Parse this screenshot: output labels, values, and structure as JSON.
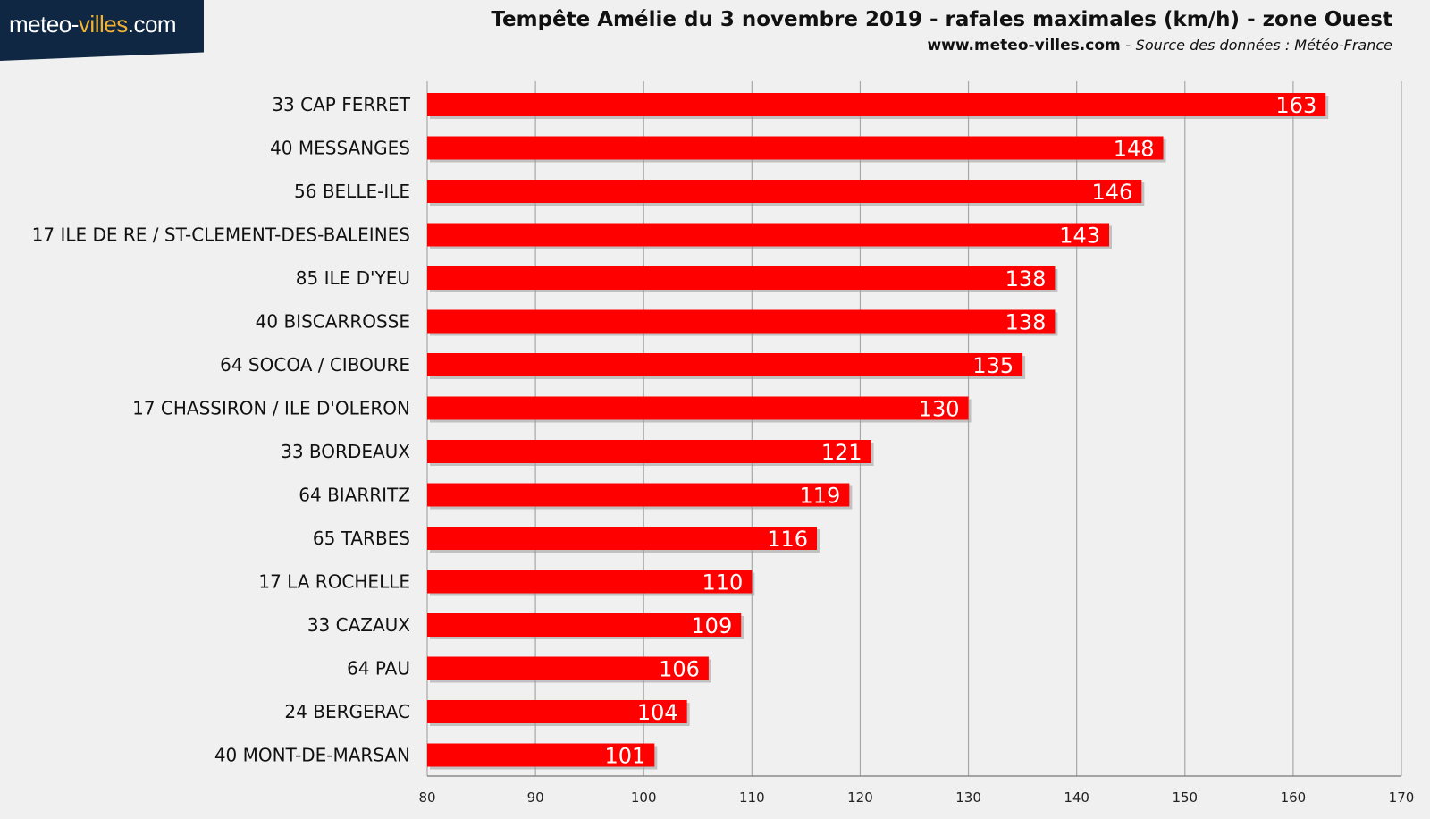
{
  "header": {
    "logo_part1": "meteo-",
    "logo_part2": "villes",
    "logo_part3": ".com",
    "title": "Tempête Amélie du 3 novembre 2019 - rafales maximales (km/h) - zone Ouest",
    "site": "www.meteo-villes.com",
    "separator": " - ",
    "source": "Source des données : Météo-France"
  },
  "colors": {
    "bar": "#ff0000",
    "bar_shadow": "#9a9a9a",
    "grid": "#a8a8a8",
    "background": "#f0f0f0",
    "logo_bg": "#0f2742",
    "logo_accent": "#f2b233"
  },
  "chart_data": {
    "type": "bar",
    "orientation": "horizontal",
    "title": "Tempête Amélie du 3 novembre 2019 - rafales maximales (km/h) - zone Ouest",
    "xlabel": "",
    "ylabel": "",
    "xlim": [
      80,
      170
    ],
    "xticks": [
      80,
      90,
      100,
      110,
      120,
      130,
      140,
      150,
      160,
      170
    ],
    "grid": "vertical",
    "data_labels": true,
    "categories": [
      "33 CAP FERRET",
      "40 MESSANGES",
      "56 BELLE-ILE",
      "17 ILE DE RE / ST-CLEMENT-DES-BALEINES",
      "85 ILE D'YEU",
      "40 BISCARROSSE",
      "64 SOCOA / CIBOURE",
      "17 CHASSIRON / ILE D'OLERON",
      "33 BORDEAUX",
      "64 BIARRITZ",
      "65 TARBES",
      "17 LA ROCHELLE",
      "33 CAZAUX",
      "64 PAU",
      "24 BERGERAC",
      "40 MONT-DE-MARSAN"
    ],
    "values": [
      163,
      148,
      146,
      143,
      138,
      138,
      135,
      130,
      121,
      119,
      116,
      110,
      109,
      106,
      104,
      101
    ]
  }
}
